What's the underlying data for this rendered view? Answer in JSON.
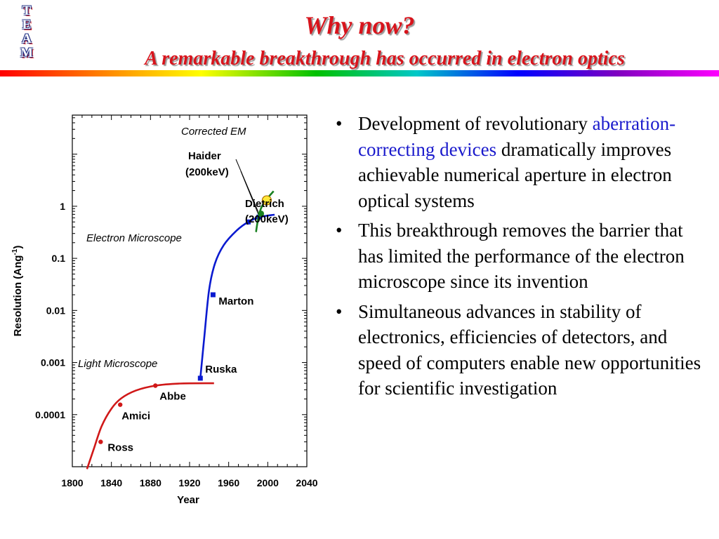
{
  "logo": {
    "letters": [
      "T",
      "E",
      "A",
      "M"
    ]
  },
  "title": {
    "line1": "Why now?",
    "line2": "A remarkable breakthrough has occurred in electron optics"
  },
  "bullets": [
    {
      "pre": "Development of revolutionary ",
      "highlight": "aberration-correcting devices",
      "post": " dramatically improves achievable numerical aperture in electron optical systems"
    },
    {
      "pre": "This breakthrough removes the barrier that has limited the performance of the electron microscope since its invention",
      "highlight": "",
      "post": ""
    },
    {
      "pre": "Simultaneous advances in stability of electronics, efficiencies of detectors, and speed of computers enable new opportunities for scientific investigation",
      "highlight": "",
      "post": ""
    }
  ],
  "bullet_symbol": "•",
  "chart_data": {
    "type": "line",
    "xlabel": "Year",
    "ylabel": "Resolution (Ang",
    "ylabel_superscript": "-1",
    "ylabel_close": ")",
    "xlim": [
      1800,
      2040
    ],
    "ylim_log10": [
      -5,
      1.75
    ],
    "log_scale_y": true,
    "x_ticks": [
      "1800",
      "1840",
      "1880",
      "1920",
      "1960",
      "2000",
      "2040"
    ],
    "x_tick_values": [
      1800,
      1840,
      1880,
      1920,
      1960,
      2000,
      2040
    ],
    "y_ticks": [
      "1",
      "0.1",
      "0.01",
      "0.001",
      "0.0001"
    ],
    "y_tick_values": [
      1,
      0.1,
      0.01,
      0.001,
      0.0001
    ],
    "grid": false,
    "series": [
      {
        "name": "Light Microscope",
        "color": "#d01818",
        "curve": [
          [
            1815,
            9e-06
          ],
          [
            1822,
            2.2e-05
          ],
          [
            1830,
            6e-05
          ],
          [
            1840,
            0.00013
          ],
          [
            1850,
            0.000205
          ],
          [
            1865,
            0.00029
          ],
          [
            1885,
            0.00036
          ],
          [
            1910,
            0.000395
          ],
          [
            1945,
            0.0004
          ]
        ],
        "points": [
          {
            "label": "Ross",
            "x": 1829,
            "y": 3e-05
          },
          {
            "label": "Amici",
            "x": 1849,
            "y": 0.000155
          },
          {
            "label": "Abbe",
            "x": 1885,
            "y": 0.00036
          }
        ]
      },
      {
        "name": "Electron Microscope",
        "color": "#0a1ad0",
        "curve": [
          [
            1931,
            0.0005
          ],
          [
            1935,
            0.003
          ],
          [
            1940,
            0.025
          ],
          [
            1946,
            0.08
          ],
          [
            1955,
            0.18
          ],
          [
            1968,
            0.34
          ],
          [
            1980,
            0.5
          ],
          [
            1992,
            0.62
          ],
          [
            2007,
            0.69
          ]
        ],
        "points": [
          {
            "label": "Ruska",
            "x": 1931,
            "y": 0.0005
          },
          {
            "label": "Marton",
            "x": 1944,
            "y": 0.02
          },
          {
            "label": "",
            "x": 1980,
            "y": 0.5
          },
          {
            "label": "",
            "x": 1991,
            "y": 0.62
          }
        ]
      },
      {
        "name": "Corrected EM",
        "color": "#188020",
        "curve": [
          [
            1988,
            0.32
          ],
          [
            1990,
            0.55
          ],
          [
            1993,
            0.9
          ],
          [
            1998,
            1.3
          ],
          [
            2006,
            1.95
          ]
        ],
        "points": [
          {
            "label": "",
            "x": 1993,
            "y": 0.72
          }
        ]
      }
    ],
    "highlight_point": {
      "x": 1999,
      "y": 1.3,
      "color": "#ffe838"
    },
    "annotations": [
      {
        "text": "Corrected EM",
        "type": "series-label"
      },
      {
        "text": "Electron Microscope",
        "type": "series-label"
      },
      {
        "text": "Light Microscope",
        "type": "series-label"
      },
      {
        "text": "Haider",
        "type": "point-label"
      },
      {
        "text": "(200keV)",
        "type": "point-label"
      },
      {
        "text": "Dietrich",
        "type": "point-label"
      },
      {
        "text": "(200keV)",
        "type": "point-label"
      }
    ]
  }
}
